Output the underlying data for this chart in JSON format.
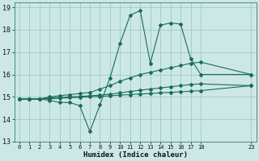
{
  "xlabel": "Humidex (Indice chaleur)",
  "xlim": [
    -0.5,
    23.5
  ],
  "ylim": [
    13,
    19.2
  ],
  "yticks": [
    13,
    14,
    15,
    16,
    17,
    18,
    19
  ],
  "xticks": [
    0,
    1,
    2,
    3,
    4,
    5,
    6,
    7,
    8,
    9,
    10,
    11,
    12,
    13,
    14,
    15,
    16,
    17,
    18,
    23
  ],
  "background_color": "#cce8e6",
  "grid_color": "#a0c8c4",
  "line_color": "#1a6b5a",
  "lines": [
    {
      "x": [
        0,
        1,
        2,
        3,
        4,
        5,
        6,
        7,
        8,
        9,
        10,
        11,
        12,
        13,
        14,
        15,
        16,
        17,
        18,
        23
      ],
      "y": [
        14.9,
        14.9,
        14.9,
        14.85,
        14.75,
        14.75,
        14.6,
        13.45,
        14.65,
        15.85,
        17.4,
        18.65,
        18.85,
        16.5,
        18.2,
        18.3,
        18.25,
        16.7,
        16.0,
        16.0
      ]
    },
    {
      "x": [
        0,
        1,
        2,
        3,
        4,
        5,
        6,
        7,
        8,
        9,
        10,
        11,
        12,
        13,
        14,
        15,
        16,
        17,
        18,
        23
      ],
      "y": [
        14.9,
        14.9,
        14.9,
        15.0,
        15.05,
        15.1,
        15.15,
        15.2,
        15.35,
        15.5,
        15.7,
        15.85,
        16.0,
        16.1,
        16.2,
        16.3,
        16.4,
        16.5,
        16.55,
        16.0
      ]
    },
    {
      "x": [
        0,
        1,
        2,
        3,
        4,
        5,
        6,
        7,
        8,
        9,
        10,
        11,
        12,
        13,
        14,
        15,
        16,
        17,
        18,
        23
      ],
      "y": [
        14.9,
        14.9,
        14.9,
        14.95,
        14.97,
        15.0,
        15.02,
        15.05,
        15.08,
        15.12,
        15.18,
        15.24,
        15.3,
        15.35,
        15.4,
        15.45,
        15.5,
        15.55,
        15.58,
        15.5
      ]
    },
    {
      "x": [
        0,
        1,
        2,
        3,
        4,
        5,
        6,
        7,
        8,
        9,
        10,
        11,
        12,
        13,
        14,
        15,
        16,
        17,
        18,
        23
      ],
      "y": [
        14.9,
        14.9,
        14.9,
        14.92,
        14.94,
        14.96,
        14.98,
        15.0,
        15.02,
        15.05,
        15.08,
        15.1,
        15.13,
        15.15,
        15.18,
        15.2,
        15.23,
        15.25,
        15.28,
        15.5
      ]
    }
  ]
}
